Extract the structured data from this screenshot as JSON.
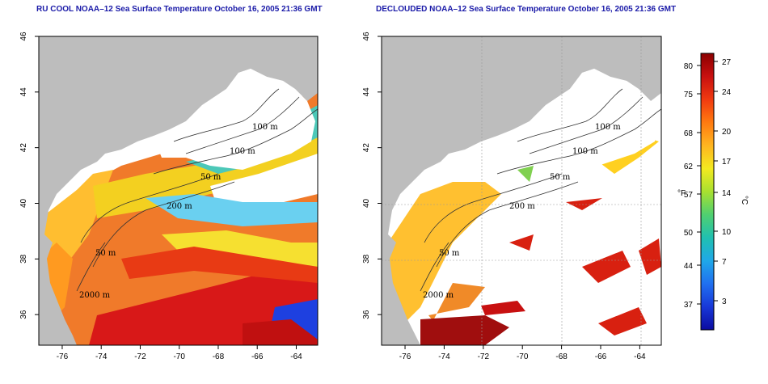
{
  "titles": {
    "left": "RU COOL NOAA–12 Sea Surface Temperature October 16, 2005 21:36 GMT",
    "right": "DECLOUDED NOAA–12 Sea Surface Temperature October 16, 2005 21:36 GMT"
  },
  "map": {
    "x_ticks": [
      "-76",
      "-74",
      "-72",
      "-70",
      "-68",
      "-66",
      "-64"
    ],
    "y_ticks": [
      "46",
      "44",
      "42",
      "40",
      "38",
      "36"
    ],
    "lon_range": [
      -77.2,
      -62.9
    ],
    "lat_range": [
      34.9,
      46.0
    ],
    "contour_labels_left": [
      "100 m",
      "100 m",
      "50 m",
      "200 m",
      "50 m",
      "2000 m"
    ],
    "contour_labels_right": [
      "100 m",
      "100 m",
      "50 m",
      "200 m",
      "50 m",
      "2000 m"
    ],
    "land_color": "#bdbdbd",
    "cloud_color": "#ffffff"
  },
  "colorbar": {
    "f_label": "°F",
    "c_label": "°C",
    "f_ticks": [
      "80",
      "75",
      "68",
      "62",
      "57",
      "50",
      "44",
      "37"
    ],
    "c_ticks": [
      "27",
      "24",
      "20",
      "17",
      "14",
      "10",
      "7",
      "3"
    ],
    "colors": [
      "#8b0000",
      "#c81010",
      "#f03a10",
      "#ff7a10",
      "#ffb520",
      "#f3ea20",
      "#a8e030",
      "#50d070",
      "#20c0b0",
      "#20a8e8",
      "#2070f0",
      "#1838d8",
      "#0c0ca0"
    ]
  }
}
